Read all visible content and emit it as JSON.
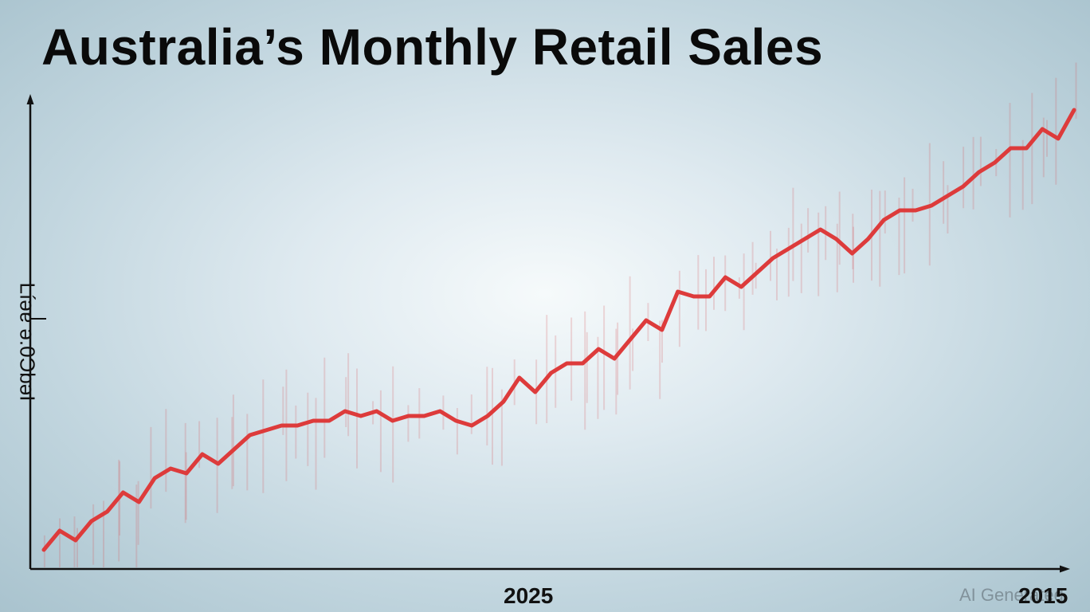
{
  "chart_data": {
    "type": "line",
    "title": "Australia’s Monthly Retail Sales",
    "ylabel": "Líǝɐ ǝ.0ƆbǝI",
    "x_tick_labels": [
      "2025",
      "2015"
    ],
    "y_ticks": [],
    "grid": false,
    "legend": "none",
    "series_color": "#dd3b3b",
    "y_units": "relative index (no scale printed)",
    "series": [
      {
        "values": [
          2,
          6,
          4,
          8,
          10,
          14,
          12,
          17,
          19,
          18,
          22,
          20,
          23,
          26,
          27,
          28,
          28,
          29,
          29,
          31,
          30,
          31,
          29,
          30,
          30,
          31,
          29,
          28,
          30,
          33,
          38,
          35,
          39,
          41,
          41,
          44,
          42,
          46,
          50,
          48,
          56,
          55,
          55,
          59,
          57,
          60,
          63,
          65,
          67,
          69,
          67,
          64,
          67,
          71,
          73,
          73,
          74,
          76,
          78,
          81,
          83,
          86,
          86,
          90,
          88,
          94
        ]
      }
    ],
    "background_annotations": {
      "faint_pink_vertical_ticks": true
    }
  },
  "watermark": "AI Generated"
}
